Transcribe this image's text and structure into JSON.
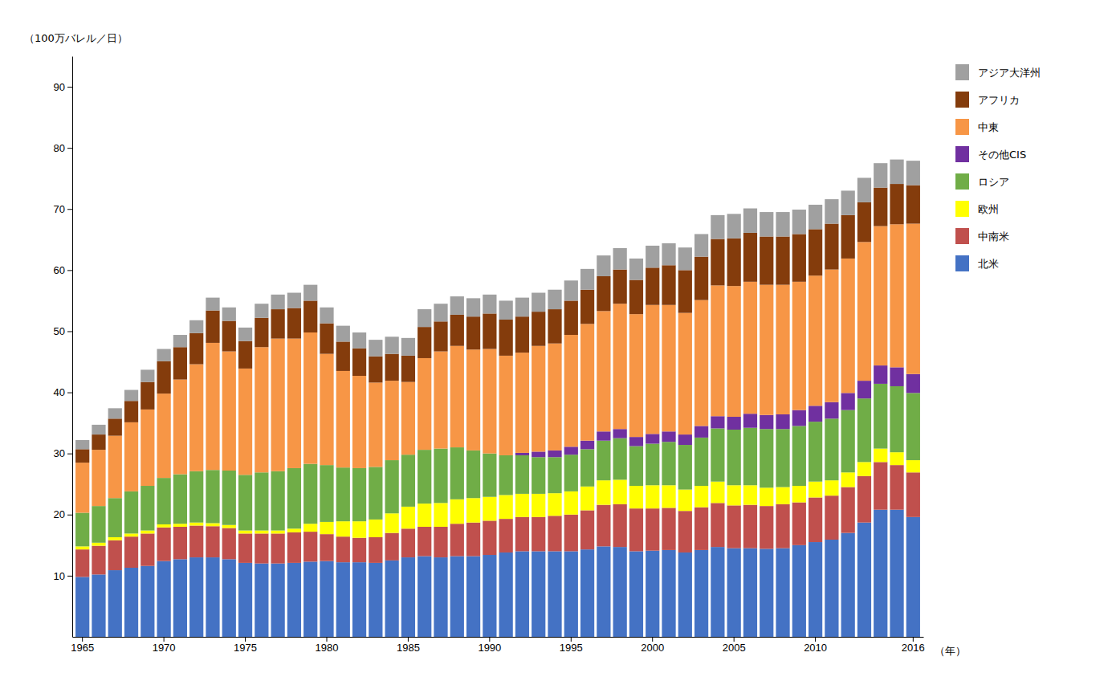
{
  "chart_data": {
    "type": "bar",
    "stacked": true,
    "grid": false,
    "legend": "right",
    "ylabel": "（100万バレル／日）",
    "xlabel": "（年）",
    "categories": [
      "1965",
      null,
      null,
      null,
      null,
      "1970",
      null,
      null,
      null,
      null,
      "1975",
      null,
      null,
      null,
      null,
      "1980",
      null,
      null,
      null,
      null,
      "1985",
      null,
      null,
      null,
      null,
      "1990",
      null,
      null,
      null,
      null,
      "1995",
      null,
      null,
      null,
      null,
      "2000",
      null,
      null,
      null,
      null,
      "2005",
      null,
      null,
      null,
      null,
      "2010",
      null,
      null,
      null,
      null,
      null,
      "2016"
    ],
    "ylim": [
      0,
      95
    ],
    "yticks": [
      10,
      20,
      30,
      40,
      50,
      60,
      70,
      80,
      90
    ],
    "series": [
      {
        "name": "北米",
        "color": "#4472C4",
        "values": [
          9.8,
          10.2,
          10.9,
          11.3,
          11.6,
          12.4,
          12.7,
          13.0,
          13.0,
          12.7,
          12.1,
          12.0,
          12.0,
          12.1,
          12.3,
          12.4,
          12.2,
          12.2,
          12.1,
          12.5,
          13.0,
          13.2,
          13.0,
          13.2,
          13.2,
          13.4,
          13.8,
          14.0,
          14.0,
          14.0,
          14.0,
          14.3,
          14.8,
          14.7,
          14.0,
          14.1,
          14.2,
          13.8,
          14.2,
          14.7,
          14.5,
          14.5,
          14.4,
          14.5,
          15.0,
          15.5,
          15.9,
          17.0,
          18.7,
          20.8,
          20.8,
          19.6
        ]
      },
      {
        "name": "中南米",
        "color": "#C0504D",
        "values": [
          4.5,
          4.7,
          4.9,
          5.1,
          5.3,
          5.5,
          5.3,
          5.2,
          5.1,
          5.1,
          4.8,
          4.9,
          4.9,
          5.0,
          4.9,
          4.4,
          4.2,
          4.0,
          4.2,
          4.5,
          4.7,
          4.8,
          5.0,
          5.3,
          5.5,
          5.6,
          5.5,
          5.6,
          5.6,
          5.8,
          6.0,
          6.4,
          6.8,
          7.0,
          7.0,
          6.9,
          6.9,
          6.8,
          7.0,
          7.2,
          7.0,
          7.1,
          7.0,
          7.2,
          7.0,
          7.3,
          7.2,
          7.5,
          7.6,
          7.8,
          7.3,
          7.3
        ]
      },
      {
        "name": "欧州",
        "color": "#FFFF00",
        "values": [
          0.5,
          0.5,
          0.5,
          0.5,
          0.5,
          0.5,
          0.5,
          0.5,
          0.5,
          0.5,
          0.5,
          0.5,
          0.5,
          0.6,
          1.3,
          2.0,
          2.5,
          2.7,
          2.9,
          3.2,
          3.6,
          3.8,
          3.9,
          4.0,
          4.0,
          3.9,
          3.9,
          3.8,
          3.8,
          3.7,
          3.8,
          3.9,
          4.0,
          4.0,
          3.7,
          3.8,
          3.7,
          3.5,
          3.5,
          3.5,
          3.3,
          3.2,
          3.0,
          2.8,
          2.7,
          2.6,
          2.5,
          2.4,
          2.3,
          2.2,
          2.1,
          2.0
        ]
      },
      {
        "name": "ロシア",
        "color": "#70AD47",
        "values": [
          5.5,
          6.0,
          6.4,
          6.9,
          7.3,
          7.6,
          8.1,
          8.4,
          8.7,
          8.9,
          9.1,
          9.5,
          9.7,
          9.9,
          9.8,
          9.3,
          8.8,
          8.7,
          8.6,
          8.7,
          8.5,
          8.8,
          8.9,
          8.5,
          7.8,
          7.1,
          6.5,
          6.3,
          6.0,
          5.9,
          6.0,
          6.1,
          6.5,
          6.8,
          6.5,
          6.8,
          7.1,
          7.3,
          7.9,
          8.7,
          9.1,
          9.4,
          9.6,
          9.5,
          9.8,
          9.8,
          10.1,
          10.2,
          10.4,
          10.6,
          10.8,
          11.0
        ]
      },
      {
        "name": "その他CIS",
        "color": "#7030A0",
        "values": [
          0.0,
          0.0,
          0.0,
          0.0,
          0.0,
          0.0,
          0.0,
          0.0,
          0.0,
          0.0,
          0.0,
          0.0,
          0.0,
          0.0,
          0.0,
          0.0,
          0.0,
          0.0,
          0.0,
          0.0,
          0.0,
          0.0,
          0.0,
          0.0,
          0.0,
          0.0,
          0.0,
          0.4,
          0.9,
          1.1,
          1.3,
          1.4,
          1.5,
          1.5,
          1.5,
          1.6,
          1.7,
          1.7,
          1.9,
          2.0,
          2.1,
          2.3,
          2.3,
          2.4,
          2.6,
          2.6,
          2.7,
          2.8,
          2.9,
          3.0,
          3.1,
          3.1
        ]
      },
      {
        "name": "中東",
        "color": "#F79646",
        "values": [
          8.2,
          9.2,
          10.2,
          11.3,
          12.5,
          13.8,
          15.5,
          17.5,
          20.8,
          19.5,
          17.4,
          20.5,
          21.7,
          21.2,
          21.5,
          18.2,
          15.8,
          15.1,
          13.8,
          13.0,
          11.9,
          15.0,
          15.9,
          16.6,
          16.5,
          17.1,
          16.3,
          16.4,
          17.3,
          17.5,
          18.3,
          19.1,
          19.7,
          20.5,
          20.1,
          21.1,
          20.7,
          19.9,
          20.6,
          21.4,
          21.4,
          21.6,
          21.3,
          21.2,
          21.0,
          21.3,
          21.7,
          22.0,
          22.7,
          22.8,
          23.4,
          24.6
        ]
      },
      {
        "name": "アフリカ",
        "color": "#843C0C",
        "values": [
          2.2,
          2.5,
          2.8,
          3.5,
          4.5,
          5.3,
          5.3,
          5.1,
          5.3,
          5.0,
          4.5,
          4.8,
          4.8,
          5.0,
          5.2,
          5.0,
          4.8,
          4.5,
          4.3,
          4.4,
          4.3,
          5.1,
          4.9,
          5.1,
          5.4,
          5.8,
          5.9,
          5.9,
          5.6,
          5.6,
          5.6,
          5.6,
          5.7,
          5.6,
          5.6,
          6.1,
          6.5,
          7.0,
          7.1,
          7.6,
          7.8,
          8.0,
          7.9,
          7.9,
          7.8,
          7.6,
          7.5,
          7.1,
          6.5,
          6.3,
          6.6,
          6.3
        ]
      },
      {
        "name": "アジア大洋州",
        "color": "#A0A0A0",
        "values": [
          1.5,
          1.6,
          1.7,
          1.8,
          2.0,
          2.0,
          2.0,
          2.1,
          2.1,
          2.2,
          2.2,
          2.3,
          2.4,
          2.5,
          2.6,
          2.6,
          2.6,
          2.6,
          2.7,
          2.8,
          2.9,
          2.9,
          2.9,
          3.0,
          3.0,
          3.1,
          3.1,
          3.1,
          3.1,
          3.2,
          3.3,
          3.4,
          3.4,
          3.5,
          3.5,
          3.6,
          3.6,
          3.7,
          3.7,
          3.9,
          4.0,
          4.0,
          4.0,
          4.0,
          4.0,
          4.0,
          4.0,
          4.0,
          4.0,
          4.0,
          4.0,
          4.0
        ]
      }
    ]
  }
}
